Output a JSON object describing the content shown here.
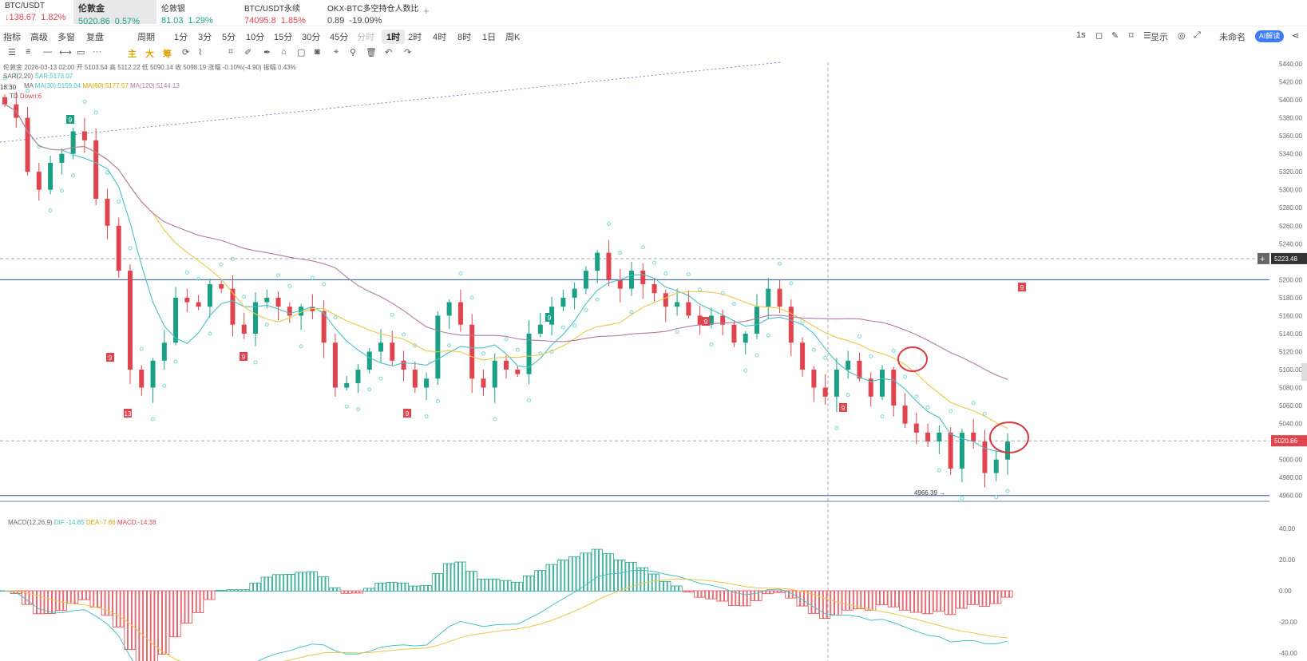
{
  "tickers": [
    {
      "name": "BTC/USDT",
      "price": "↓138.67",
      "change": "1.82%",
      "color": "red",
      "selected": false
    },
    {
      "name": "伦敦金",
      "price": "5020.86",
      "change": "0.57%",
      "color": "green",
      "selected": true
    },
    {
      "name": "伦敦银",
      "price": "81.03",
      "change": "1.29%",
      "color": "green",
      "selected": false
    },
    {
      "name": "BTC/USDT永续",
      "price": "74095.8",
      "change": "1.85%",
      "color": "red",
      "selected": false
    },
    {
      "name": "OKX-BTC多空持仓人数比",
      "price": "0.89",
      "change": "-19.09%",
      "color": "dark",
      "selected": false
    }
  ],
  "add_tab": "+",
  "toolbar": {
    "left": [
      "指标",
      "高级",
      "多窗",
      "复盘"
    ],
    "period_label": "周期",
    "periods": [
      "1分",
      "3分",
      "5分",
      "10分",
      "15分",
      "30分",
      "45分",
      "分时",
      "1时",
      "2时",
      "4时",
      "8时",
      "1日",
      "周K"
    ],
    "active_period": "1时",
    "right": [
      "1s",
      "显示",
      "未命名"
    ],
    "ai_label": "AI解读"
  },
  "drawbar": {
    "labels": [
      "主",
      "大",
      "筹"
    ]
  },
  "legend": {
    "info": "伦敦金 2026-03-13 02:00 开 5103.54 高 5112.22 低 5090.14 收 5098.19 涨幅 -0.10%(-4.90) 振幅 0.43%",
    "sar_label": "SAR(2,20)",
    "sar_value": "SAR:5173.07",
    "ma_label": "MA",
    "ma30": "MA(30):5159.04",
    "ma60": "MA(60):5177.57",
    "ma120": "MA(120):5144.13",
    "td_label": "TD",
    "td_value": "Down:6",
    "time": "18:30",
    "macd_label": "MACD(12,26,9)",
    "dif": "DIF:-14.85",
    "dea": "DEA:-7.66",
    "macd": "MACD:-14.38"
  },
  "colors": {
    "up": "#1aa085",
    "down": "#e0444f",
    "ma30": "#48c0c6",
    "ma60": "#e8c84a",
    "ma120": "#b07aa5",
    "sar": "#7fd8d0",
    "hline": "#2b5797",
    "price_tag": "#e0444f",
    "callout": "#d83a45"
  },
  "chart_data": {
    "type": "candlestick",
    "y_range": [
      4950,
      5440
    ],
    "y_ticks": [
      "5440.00",
      "5420.00",
      "5400.00",
      "5380.00",
      "5360.00",
      "5340.00",
      "5320.00",
      "5300.00",
      "5280.00",
      "5260.00",
      "5240.00",
      "5220.00",
      "5200.00",
      "5180.00",
      "5160.00",
      "5140.00",
      "5120.00",
      "5100.00",
      "5080.00",
      "5060.00",
      "5040.00",
      "5020.00",
      "5000.00",
      "4980.00",
      "4960.00"
    ],
    "current_price": "5020.86",
    "crosshair_price": "5223.48",
    "low_label": "4966.39",
    "horizontal_lines": [
      5200,
      4960
    ],
    "dashed_levels": [
      5223.48,
      5020.86
    ],
    "td_marks": [
      "9",
      "9",
      "13",
      "9",
      "9",
      "9",
      "9",
      "9",
      "9"
    ],
    "closes": [
      5395,
      5380,
      5320,
      5300,
      5330,
      5340,
      5365,
      5355,
      5290,
      5260,
      5210,
      5100,
      5080,
      5110,
      5130,
      5180,
      5175,
      5170,
      5195,
      5190,
      5150,
      5140,
      5175,
      5180,
      5170,
      5160,
      5170,
      5165,
      5130,
      5080,
      5085,
      5100,
      5120,
      5130,
      5110,
      5100,
      5080,
      5090,
      5160,
      5175,
      5150,
      5090,
      5080,
      5110,
      5100,
      5095,
      5140,
      5150,
      5170,
      5180,
      5190,
      5210,
      5230,
      5200,
      5190,
      5210,
      5195,
      5185,
      5170,
      5175,
      5160,
      5150,
      5160,
      5150,
      5130,
      5140,
      5170,
      5190,
      5170,
      5130,
      5100,
      5080,
      5070,
      5100,
      5110,
      5090,
      5070,
      5100,
      5060,
      5040,
      5030,
      5020,
      5030,
      4990,
      5030,
      5020,
      4985,
      5000,
      5020
    ],
    "macd": {
      "y_ticks": [
        "40.00",
        "20.00",
        "0.00",
        "-20.00",
        "-40.00"
      ],
      "y_range": [
        -45,
        45
      ]
    }
  }
}
